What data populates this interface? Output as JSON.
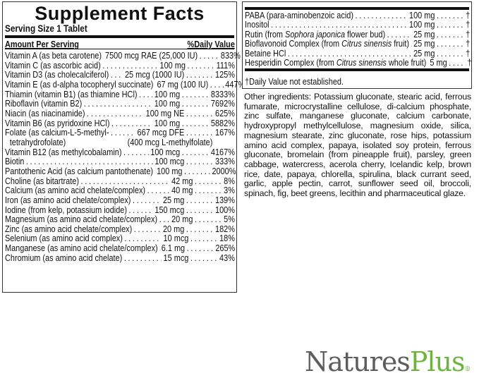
{
  "left": {
    "title": "Supplement Facts",
    "serving_size": "Serving Size 1 Tablet",
    "amount_header": "Amount Per Serving",
    "dv_header": "%Daily Value",
    "rows": [
      {
        "name": "Vitamin A (as beta carotene)",
        "amount": "7500 mcg RAE (25,000 IU)",
        "dv": "833%"
      },
      {
        "name": "Vitamin C (as ascorbic acid)",
        "amount": "100 mg",
        "dv": "111%"
      },
      {
        "name": "Vitamin D3 (as cholecalciferol)",
        "amount": "25 mcg (1000 IU)",
        "dv": "125%"
      },
      {
        "name": "Vitamin E (as d-alpha tocopheryl succinate)",
        "amount": "67 mg (100 IU)",
        "dv": "447%"
      },
      {
        "name": "Thiamin (vitamin B1) (as thiamine HCl)",
        "amount": "100 mg",
        "dv": "8333%"
      },
      {
        "name": "Riboflavin (vitamin B2)",
        "amount": "100 mg",
        "dv": "7692%"
      },
      {
        "name": "Niacin (as niacinamide)",
        "amount": "100 mg NE",
        "dv": "625%"
      },
      {
        "name": "Vitamin B6 (as pyridoxine HCl)",
        "amount": "100 mg",
        "dv": "5882%"
      },
      {
        "name": "Folate (as calcium-L-5-methyl-",
        "amount": "667 mcg DFE",
        "dv": "167%",
        "line2": "tetrahydrofolate)",
        "line2b": "(400 mcg L-methylfolate)"
      },
      {
        "name": "Vitamin B12 (as methylcobalamin)",
        "amount": "100 mcg",
        "dv": "4167%"
      },
      {
        "name": "Biotin",
        "amount": "100 mcg",
        "dv": "333%"
      },
      {
        "name": "Pantothenic Acid (as calcium pantothenate)",
        "amount": "100 mg",
        "dv": "2000%"
      },
      {
        "name": "Choline (as bitartrate)",
        "amount": "42 mg",
        "dv": "8%"
      },
      {
        "name": "Calcium (as amino acid chelate/complex)",
        "amount": "40 mg",
        "dv": "3%"
      },
      {
        "name": "Iron (as amino acid chelate/complex)",
        "amount": "25 mg",
        "dv": "139%"
      },
      {
        "name": "Iodine (from kelp, potassium iodide)",
        "amount": "150 mcg",
        "dv": "100%"
      },
      {
        "name": "Magnesium (as amino acid chelate/complex)",
        "amount": "20 mg",
        "dv": "5%"
      },
      {
        "name": "Zinc (as amino acid chelate/complex)",
        "amount": "20 mg",
        "dv": "182%"
      },
      {
        "name": "Selenium (as amino acid complex)",
        "amount": "10 mcg",
        "dv": "18%"
      },
      {
        "name": "Manganese (as amino acid chelate/complex)",
        "amount": "6.1 mg",
        "dv": "265%"
      },
      {
        "name": "Chromium (as amino acid chelate)",
        "amount": "15 mcg",
        "dv": "43%"
      }
    ]
  },
  "right": {
    "rows": [
      {
        "name": "PABA (para-aminobenzoic acid)",
        "amount": "100 mg",
        "dv": "†"
      },
      {
        "name": "Inositol",
        "amount": "100 mg",
        "dv": "†"
      },
      {
        "name": "Rutin (from Sophora japonica flower bud)",
        "amount": "25 mg",
        "dv": "†"
      },
      {
        "name": "Bioflavonoid Complex (from Citrus sinensis fruit)",
        "amount": "25 mg",
        "dv": "†"
      },
      {
        "name": "Betaine HCl",
        "amount": "25 mg",
        "dv": "†"
      },
      {
        "name": "Hesperidin Complex (from Citrus sinensis whole fruit)",
        "amount": "5 mg",
        "dv": "†"
      }
    ],
    "footnote": "†Daily Value not established."
  },
  "other_ingredients": "Other ingredients: Potassium gluconate, stearic acid, ferrous fumarate, microcrystalline cellulose, di-calcium phosphate, zinc sulfate, manganese gluconate, calcium carbonate, hydroxypropyl methylcellulose, magnesium oxide, silica, magnesium stearate, zinc gluconate, rose hips, potassium amino acid complex, papaya, isolated soy protein, ferrous gluconate, bromelain (from pineapple fruit), parsley, green cabbage, watercress, acerola cherry, Icelandic kelp, brown rice, date, papaya, chlorella, spirulina, black currant seed, garlic, apple pectin, carrot, sunflower seed oil, broccoli, spinach, fig, beet greens, lecithin and pharmaceutical glaze.",
  "logo": {
    "part1": "Natures",
    "part2": "Plus",
    "mark": "®",
    "colors": {
      "natures": "#5d5d5d",
      "plus": "#6db33f"
    }
  }
}
